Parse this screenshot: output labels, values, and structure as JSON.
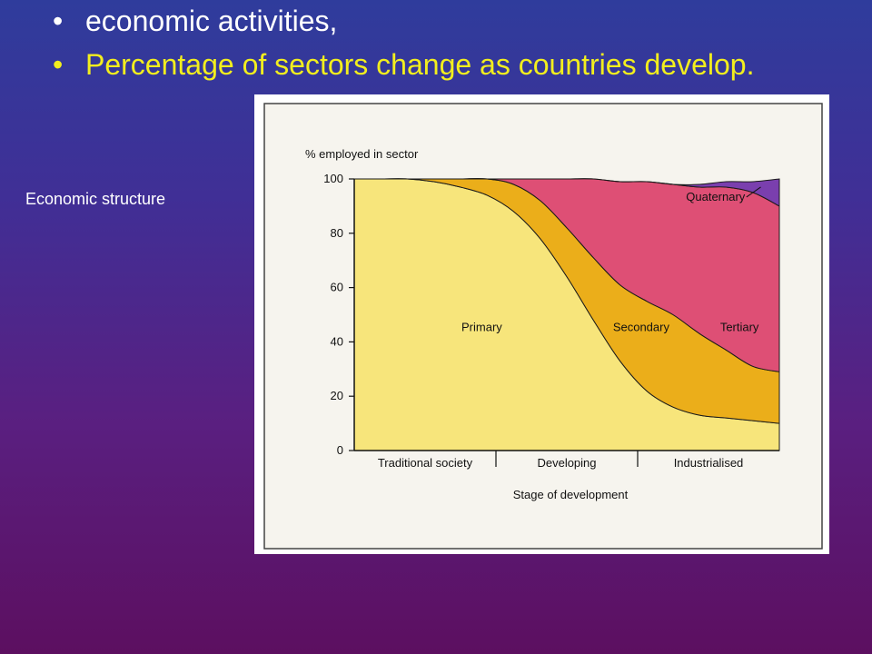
{
  "slide": {
    "bullets": [
      "economic activities,",
      "Percentage of sectors change as countries develop."
    ],
    "side_label": "Economic structure"
  },
  "colors": {
    "primary": "#f7e57b",
    "secondary": "#ebae1a",
    "tertiary": "#de4f75",
    "quaternary": "#7a3fae",
    "bullet_highlight": "#f2ee1e"
  },
  "chart_data": {
    "type": "area",
    "stacked": true,
    "ylabel": "% employed in sector",
    "xlabel": "Stage of development",
    "ylim": [
      0,
      100
    ],
    "yticks": [
      0,
      20,
      40,
      60,
      80,
      100
    ],
    "stages": [
      "Traditional society",
      "Developing",
      "Industrialised"
    ],
    "x": [
      0,
      1,
      2,
      3,
      4,
      5,
      6,
      7,
      8,
      9,
      10,
      11,
      12,
      13,
      14,
      15,
      16
    ],
    "series": [
      {
        "name": "Primary",
        "values": [
          100,
          100,
          100,
          99,
          97,
          94,
          88,
          78,
          64,
          48,
          33,
          22,
          16,
          13,
          12,
          11,
          10
        ],
        "label_at": [
          4.8,
          44
        ]
      },
      {
        "name": "Secondary",
        "values": [
          0,
          0,
          0,
          1,
          3,
          6,
          10,
          14,
          18,
          23,
          28,
          33,
          34,
          30,
          25,
          20,
          19
        ],
        "label_at": [
          10.8,
          44
        ]
      },
      {
        "name": "Tertiary",
        "values": [
          0,
          0,
          0,
          0,
          0,
          0,
          2,
          8,
          18,
          29,
          38,
          44,
          48,
          54,
          60,
          64,
          61
        ],
        "label_at": [
          14.5,
          44
        ]
      },
      {
        "name": "Quaternary",
        "values": [
          0,
          0,
          0,
          0,
          0,
          0,
          0,
          0,
          0,
          0,
          0,
          0,
          0,
          1,
          2,
          4,
          10
        ],
        "label_at": [
          13.6,
          92
        ]
      }
    ]
  }
}
